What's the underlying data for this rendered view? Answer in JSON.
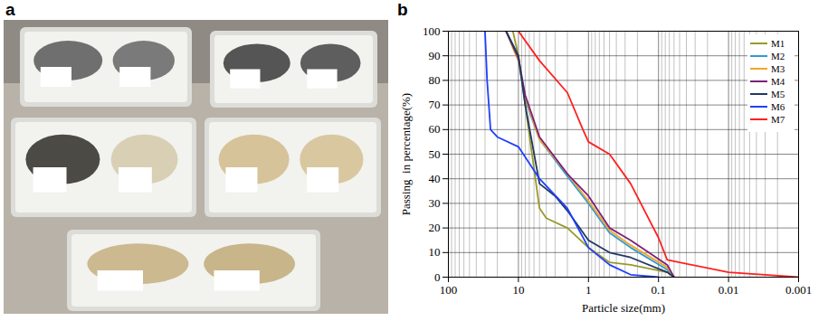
{
  "panel_labels": [
    "a",
    "b"
  ],
  "chart_data": {
    "type": "line",
    "xlabel": "Particle size(mm)",
    "ylabel": "Passing  in percentage(%)",
    "log": "x",
    "grid": true,
    "legend": "top-right",
    "xlim": [
      100,
      0.001
    ],
    "xticks": [
      100,
      10,
      1,
      0.1,
      0.01,
      0.001
    ],
    "ylim": [
      0,
      100
    ],
    "yticks": [
      0,
      10,
      20,
      30,
      40,
      50,
      60,
      70,
      80,
      90,
      100
    ],
    "series": [
      {
        "name": "M1",
        "color": "#9a9a2a",
        "x": [
          12,
          10,
          8,
          5,
          4,
          2,
          1,
          0.5,
          0.25,
          0.075,
          0.06
        ],
        "values": [
          100,
          90,
          70,
          28,
          24,
          20,
          12,
          6,
          5,
          2,
          0
        ]
      },
      {
        "name": "M2",
        "color": "#2e9bd6",
        "x": [
          15,
          10,
          8,
          5,
          2,
          1,
          0.5,
          0.25,
          0.075,
          0.06
        ],
        "values": [
          100,
          88,
          72,
          56,
          41,
          30,
          18,
          12,
          3,
          0
        ]
      },
      {
        "name": "M3",
        "color": "#f5a623",
        "x": [
          15,
          10,
          8,
          5,
          2,
          1,
          0.5,
          0.25,
          0.075,
          0.06
        ],
        "values": [
          100,
          88,
          73,
          56,
          42,
          31,
          19,
          13,
          4,
          0
        ]
      },
      {
        "name": "M4",
        "color": "#7b1f7b",
        "x": [
          15,
          10,
          8,
          5,
          2,
          1,
          0.5,
          0.25,
          0.075,
          0.06
        ],
        "values": [
          100,
          89,
          74,
          57,
          42,
          33,
          20,
          15,
          5,
          0
        ]
      },
      {
        "name": "M5",
        "color": "#1f3864",
        "x": [
          15,
          10,
          8,
          5,
          3,
          2,
          1,
          0.5,
          0.25,
          0.075,
          0.06
        ],
        "values": [
          100,
          90,
          70,
          38,
          33,
          27,
          15,
          10,
          8,
          2,
          0
        ]
      },
      {
        "name": "M6",
        "color": "#1f3fff",
        "x": [
          30,
          28,
          25,
          20,
          10,
          5,
          2,
          1,
          0.5,
          0.25,
          0.1
        ],
        "values": [
          100,
          80,
          60,
          57,
          53,
          40,
          28,
          12,
          5,
          1,
          0
        ]
      },
      {
        "name": "M7",
        "color": "#ff2020",
        "x": [
          10,
          5,
          2,
          1.2,
          1,
          0.5,
          0.25,
          0.1,
          0.075,
          0.01,
          0.001
        ],
        "values": [
          100,
          88,
          75,
          60,
          55,
          50,
          38,
          16,
          7,
          2,
          0
        ]
      }
    ]
  }
}
